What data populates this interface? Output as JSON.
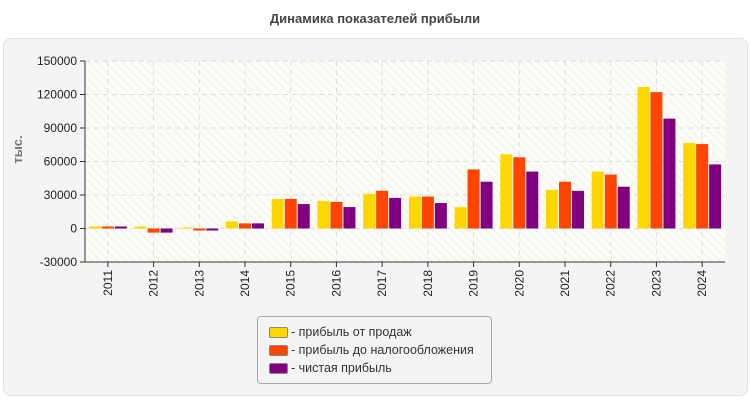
{
  "chart_data": {
    "type": "bar",
    "title": "Динамика показателей прибыли",
    "ylabel": "тыс.",
    "xlabel": "",
    "ylim": [
      -30000,
      150000
    ],
    "yticks": [
      -30000,
      0,
      30000,
      60000,
      90000,
      120000,
      150000
    ],
    "ytick_labels": [
      "-30000",
      "0",
      "30000",
      "60000",
      "90000",
      "120000",
      "150000"
    ],
    "grid": true,
    "legend_position": "bottom",
    "categories": [
      "2011",
      "2012",
      "2013",
      "2014",
      "2015",
      "2016",
      "2017",
      "2018",
      "2019",
      "2020",
      "2021",
      "2022",
      "2023",
      "2024"
    ],
    "series": [
      {
        "name": "- прибыль от продаж",
        "color": "#ffd700",
        "values": [
          1800,
          1800,
          900,
          6400,
          26500,
          24700,
          31100,
          28600,
          19100,
          66500,
          34600,
          51000,
          126700,
          76600
        ]
      },
      {
        "name": "- прибыль до налогообложения",
        "color": "#ff4500",
        "values": [
          1800,
          -3700,
          -1800,
          4600,
          26500,
          23800,
          33800,
          28600,
          52900,
          63800,
          41900,
          48300,
          122100,
          75600
        ]
      },
      {
        "name": "- чистая прибыль",
        "color": "#800080",
        "values": [
          1800,
          -3700,
          -1800,
          4600,
          21900,
          19200,
          27400,
          22800,
          41900,
          51000,
          33700,
          37400,
          98400,
          57400
        ]
      }
    ]
  }
}
